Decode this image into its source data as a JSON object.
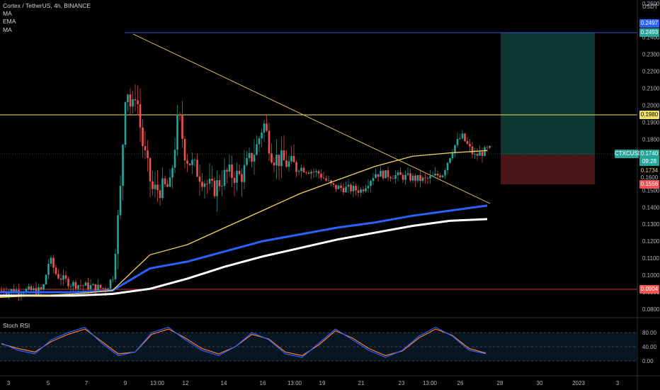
{
  "header": {
    "symbol_line": "Cortex / TetherUS, 4h, BINANCE",
    "indicators": [
      "MA",
      "EMA",
      "MA"
    ]
  },
  "price_axis": {
    "currency": "USDT",
    "ticks": [
      "0.2600",
      "0.2400",
      "0.2300",
      "0.2200",
      "0.2100",
      "0.2000",
      "0.1900",
      "0.1800",
      "0.1700",
      "0.1600",
      "0.1500",
      "0.1400",
      "0.1300",
      "0.1200",
      "0.1100",
      "0.1000",
      "0.0900",
      "0.0800"
    ]
  },
  "price_tags": {
    "top_blue": "0.2497",
    "target": "0.2493",
    "resistance": "0.1980",
    "symbol_tag": "CTXCUSDT",
    "current": "0.1740",
    "countdown": "09:28",
    "ema_value": "0.1734",
    "mid_value": "0.1600",
    "stop": "0.1556",
    "support": "0.0904"
  },
  "time_axis": {
    "labels": [
      "3",
      "5",
      "7",
      "9",
      "13:00",
      "12",
      "14",
      "16",
      "13:00",
      "19",
      "21",
      "23",
      "13:00",
      "26",
      "28",
      "30",
      "2023",
      "3"
    ]
  },
  "rsi_panel": {
    "title": "Stoch RSI",
    "ticks": [
      "80.00",
      "40.00",
      "0.00"
    ]
  },
  "colors": {
    "background": "#000000",
    "up": "#26a69a",
    "down": "#ef5350",
    "resistance_line": "#f0e068",
    "support_line": "#d03434",
    "top_line": "#3a4fd8",
    "ema_slow": "#2962ff",
    "ma_white": "#ffffff",
    "ma_yellow": "#f9d45c",
    "rsi_k": "#2962ff",
    "rsi_d": "#ff7f2a",
    "target_zone": "#0d3b33",
    "stop_zone": "#4a1416"
  },
  "chart_data": {
    "type": "candlestick",
    "price_range": [
      0.075,
      0.262
    ],
    "levels": {
      "top": 0.2493,
      "resistance": 0.198,
      "support": 0.0904,
      "current": 0.174
    },
    "trendline": {
      "from": [
        0.2493
      ],
      "to": [
        0.145
      ]
    },
    "position": {
      "entry": 0.174,
      "target": 0.2493,
      "stop": 0.1556
    },
    "ema_yellow": [
      0.087,
      0.088,
      0.089,
      0.091,
      0.112,
      0.118,
      0.128,
      0.138,
      0.148,
      0.156,
      0.164,
      0.17,
      0.172,
      0.1734
    ],
    "ma_blue": [
      0.09,
      0.09,
      0.09,
      0.091,
      0.104,
      0.108,
      0.114,
      0.12,
      0.124,
      0.128,
      0.131,
      0.135,
      0.138,
      0.141
    ],
    "ma_white": [
      0.088,
      0.088,
      0.088,
      0.089,
      0.092,
      0.098,
      0.105,
      0.111,
      0.116,
      0.121,
      0.125,
      0.129,
      0.132,
      0.133
    ],
    "stoch_rsi_k": [
      50,
      30,
      20,
      60,
      80,
      95,
      50,
      15,
      25,
      80,
      95,
      60,
      30,
      15,
      40,
      80,
      60,
      20,
      10,
      50,
      90,
      60,
      30,
      10,
      30,
      70,
      95,
      70,
      30,
      20
    ],
    "stoch_rsi_d": [
      48,
      35,
      25,
      55,
      75,
      90,
      55,
      20,
      25,
      75,
      90,
      65,
      35,
      20,
      40,
      75,
      62,
      25,
      15,
      45,
      85,
      65,
      35,
      15,
      28,
      65,
      90,
      72,
      35,
      22
    ]
  }
}
